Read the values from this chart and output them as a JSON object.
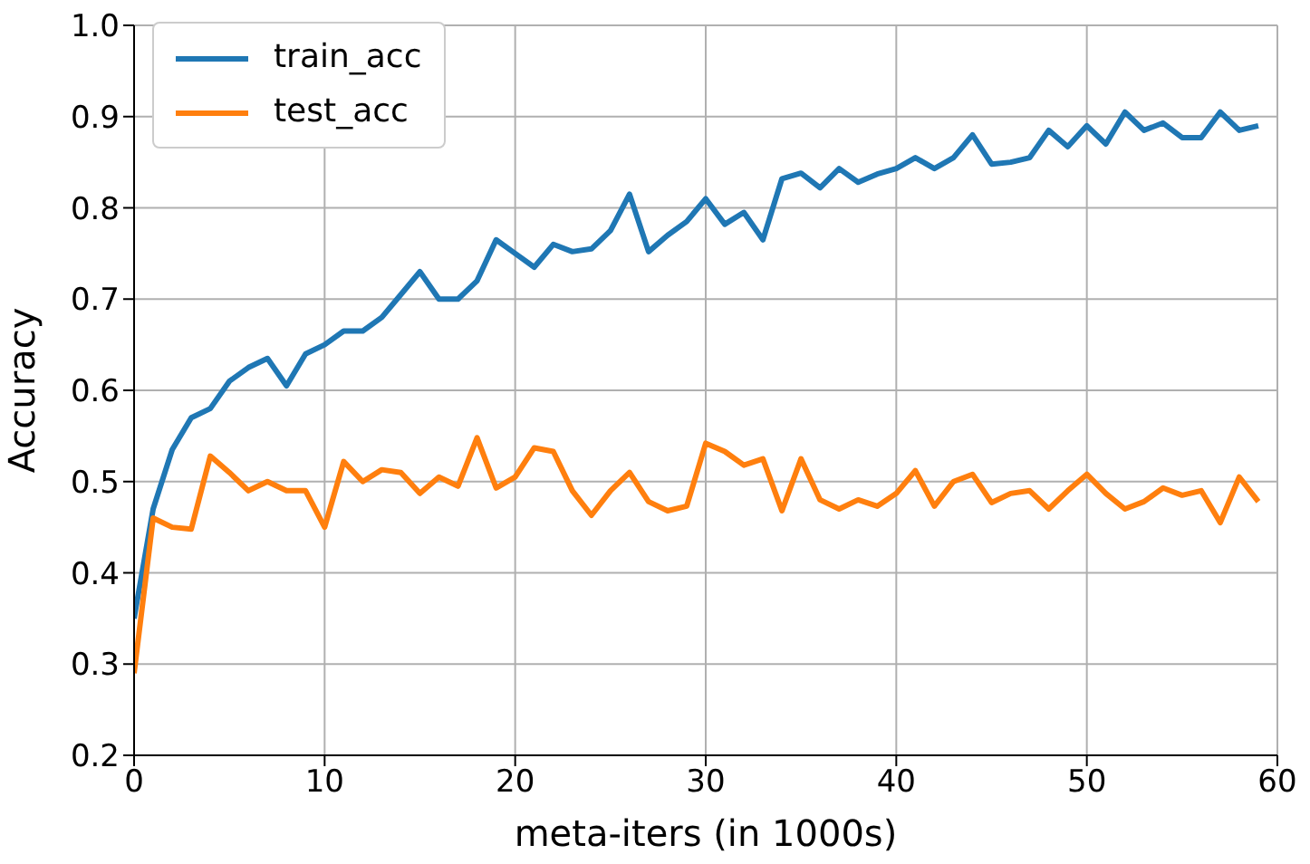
{
  "chart_data": {
    "type": "line",
    "xlabel": "meta-iters (in 1000s)",
    "ylabel": "Accuracy",
    "x": [
      0,
      1,
      2,
      3,
      4,
      5,
      6,
      7,
      8,
      9,
      10,
      11,
      12,
      13,
      14,
      15,
      16,
      17,
      18,
      19,
      20,
      21,
      22,
      23,
      24,
      25,
      26,
      27,
      28,
      29,
      30,
      31,
      32,
      33,
      34,
      35,
      36,
      37,
      38,
      39,
      40,
      41,
      42,
      43,
      44,
      45,
      46,
      47,
      48,
      49,
      50,
      51,
      52,
      53,
      54,
      55,
      56,
      57,
      58,
      59
    ],
    "series": [
      {
        "name": "train_acc",
        "color": "#1f77b4",
        "values": [
          0.35,
          0.47,
          0.535,
          0.57,
          0.58,
          0.61,
          0.625,
          0.635,
          0.605,
          0.64,
          0.65,
          0.665,
          0.665,
          0.68,
          0.705,
          0.73,
          0.7,
          0.7,
          0.72,
          0.765,
          0.75,
          0.735,
          0.76,
          0.752,
          0.755,
          0.775,
          0.815,
          0.752,
          0.77,
          0.785,
          0.81,
          0.782,
          0.795,
          0.765,
          0.832,
          0.838,
          0.822,
          0.843,
          0.828,
          0.837,
          0.843,
          0.855,
          0.843,
          0.855,
          0.88,
          0.848,
          0.85,
          0.855,
          0.885,
          0.867,
          0.89,
          0.87,
          0.905,
          0.885,
          0.893,
          0.877,
          0.877,
          0.905,
          0.885,
          0.89
        ]
      },
      {
        "name": "test_acc",
        "color": "#ff7f0e",
        "values": [
          0.29,
          0.46,
          0.45,
          0.448,
          0.528,
          0.51,
          0.49,
          0.5,
          0.49,
          0.49,
          0.45,
          0.522,
          0.5,
          0.513,
          0.51,
          0.487,
          0.505,
          0.495,
          0.548,
          0.493,
          0.505,
          0.537,
          0.533,
          0.49,
          0.463,
          0.49,
          0.51,
          0.478,
          0.468,
          0.473,
          0.542,
          0.533,
          0.518,
          0.525,
          0.468,
          0.525,
          0.48,
          0.47,
          0.48,
          0.473,
          0.487,
          0.512,
          0.473,
          0.5,
          0.508,
          0.477,
          0.487,
          0.49,
          0.47,
          0.49,
          0.508,
          0.487,
          0.47,
          0.478,
          0.493,
          0.485,
          0.49,
          0.455,
          0.505,
          0.478
        ]
      }
    ],
    "xlim": [
      0,
      60
    ],
    "xticks": [
      0,
      10,
      20,
      30,
      40,
      50,
      60
    ],
    "ylim": [
      0.2,
      1.0
    ],
    "yticks": [
      {
        "value": 0.2,
        "label": "0.2"
      },
      {
        "value": 0.3,
        "label": "0.3"
      },
      {
        "value": 0.4,
        "label": "0.4"
      },
      {
        "value": 0.5,
        "label": "0.5"
      },
      {
        "value": 0.6,
        "label": "0.6"
      },
      {
        "value": 0.7,
        "label": "0.7"
      },
      {
        "value": 0.8,
        "label": "0.8"
      },
      {
        "value": 0.9,
        "label": "0.9"
      },
      {
        "value": 1,
        "label": "1.0"
      }
    ],
    "grid": true,
    "legend": "top left",
    "marker": "none",
    "line_style": "solid"
  }
}
